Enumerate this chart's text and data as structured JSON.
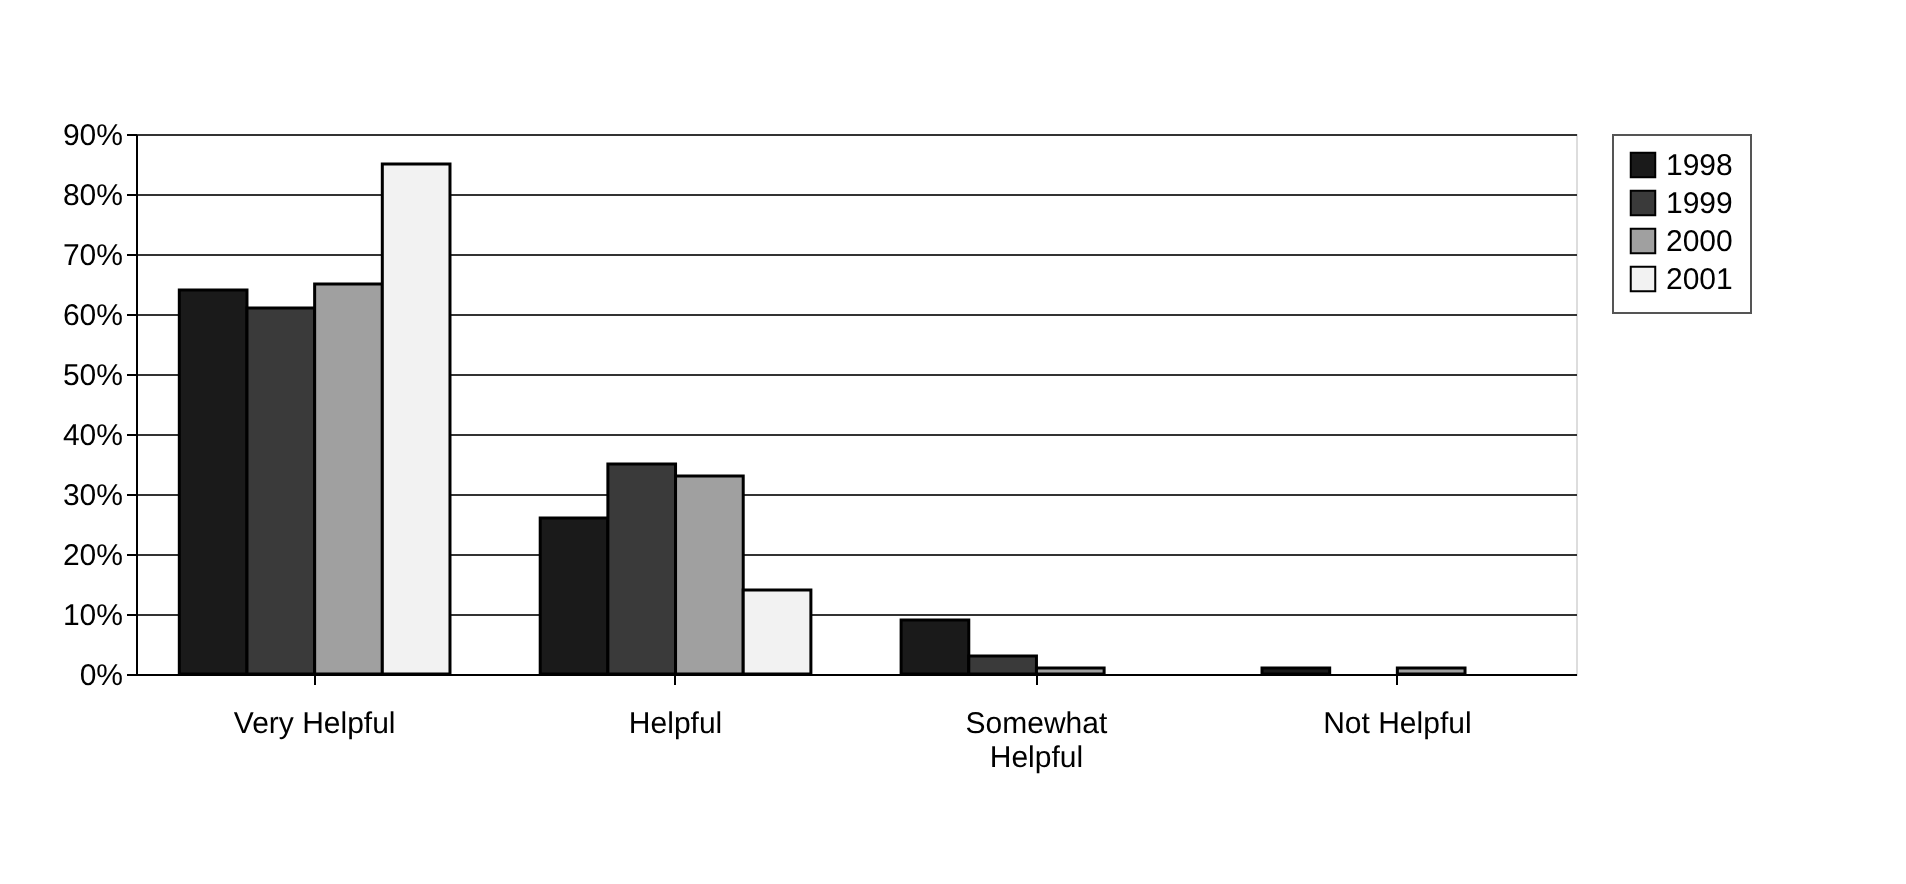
{
  "chart_data": {
    "type": "bar",
    "categories": [
      "Very Helpful",
      "Helpful",
      "Somewhat Helpful",
      "Not Helpful"
    ],
    "series": [
      {
        "name": "1998",
        "color": "#1a1a1a",
        "values": [
          64,
          26,
          9,
          1
        ]
      },
      {
        "name": "1999",
        "color": "#3a3a3a",
        "values": [
          61,
          35,
          3,
          null
        ]
      },
      {
        "name": "2000",
        "color": "#a0a0a0",
        "values": [
          65,
          33,
          1,
          1
        ]
      },
      {
        "name": "2001",
        "color": "#f2f2f2",
        "values": [
          85,
          14,
          null,
          null
        ]
      }
    ],
    "ylim": [
      0,
      90
    ],
    "yticks": [
      {
        "value": 0,
        "label": "0%"
      },
      {
        "value": 10,
        "label": "10%"
      },
      {
        "value": 20,
        "label": "20%"
      },
      {
        "value": 30,
        "label": "30%"
      },
      {
        "value": 40,
        "label": "40%"
      },
      {
        "value": 50,
        "label": "50%"
      },
      {
        "value": 60,
        "label": "60%"
      },
      {
        "value": 70,
        "label": "70%"
      },
      {
        "value": 80,
        "label": "80%"
      },
      {
        "value": 90,
        "label": "90%"
      }
    ],
    "grid": "y",
    "legend": "right"
  }
}
